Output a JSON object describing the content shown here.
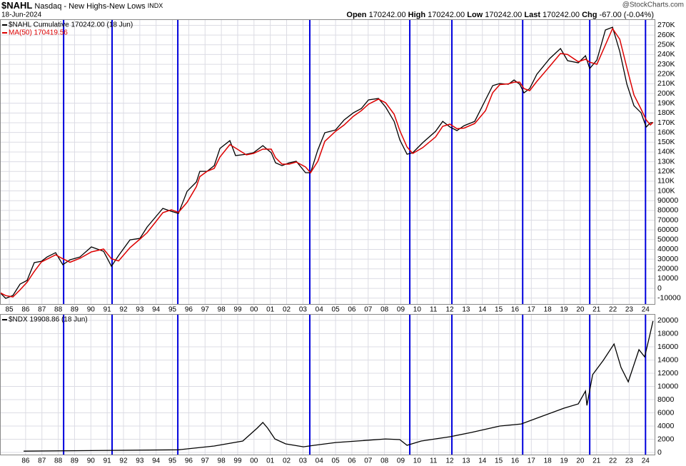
{
  "header": {
    "symbol": "$NAHL",
    "name": "Nasdaq - New Highs-New Lows",
    "exchange": "INDX",
    "date": "18-Jun-2024",
    "open_label": "Open",
    "open": "170242.00",
    "high_label": "High",
    "high": "170242.00",
    "low_label": "Low",
    "low": "170242.00",
    "last_label": "Last",
    "last": "170242.00",
    "chg_label": "Chg",
    "chg": "-67.00 (-0.04%)",
    "source": "@StockCharts.com"
  },
  "markers": [
    1988.33,
    1991.3,
    1995.33,
    2003.42,
    2009.55,
    2012.13,
    2016.47,
    2020.58,
    2024.0
  ],
  "marker_color": "#0000dd",
  "chart_data": [
    {
      "type": "line",
      "grid": true,
      "legend": "top-left",
      "xlim": [
        1984.43,
        2024.6
      ],
      "ylim": [
        -16800,
        276200
      ],
      "xticks": [
        {
          "value": 1985,
          "label": "85"
        },
        {
          "value": 1986,
          "label": "86"
        },
        {
          "value": 1987,
          "label": "87"
        },
        {
          "value": 1988,
          "label": "88"
        },
        {
          "value": 1989,
          "label": "89"
        },
        {
          "value": 1990,
          "label": "90"
        },
        {
          "value": 1991,
          "label": "91"
        },
        {
          "value": 1992,
          "label": "92"
        },
        {
          "value": 1993,
          "label": "93"
        },
        {
          "value": 1994,
          "label": "94"
        },
        {
          "value": 1995,
          "label": "95"
        },
        {
          "value": 1996,
          "label": "96"
        },
        {
          "value": 1997,
          "label": "97"
        },
        {
          "value": 1998,
          "label": "98"
        },
        {
          "value": 1999,
          "label": "99"
        },
        {
          "value": 2000,
          "label": "00"
        },
        {
          "value": 2001,
          "label": "01"
        },
        {
          "value": 2002,
          "label": "02"
        },
        {
          "value": 2003,
          "label": "03"
        },
        {
          "value": 2004,
          "label": "04"
        },
        {
          "value": 2005,
          "label": "05"
        },
        {
          "value": 2006,
          "label": "06"
        },
        {
          "value": 2007,
          "label": "07"
        },
        {
          "value": 2008,
          "label": "08"
        },
        {
          "value": 2009,
          "label": "09"
        },
        {
          "value": 2010,
          "label": "10"
        },
        {
          "value": 2011,
          "label": "11"
        },
        {
          "value": 2012,
          "label": "12"
        },
        {
          "value": 2013,
          "label": "13"
        },
        {
          "value": 2014,
          "label": "14"
        },
        {
          "value": 2015,
          "label": "15"
        },
        {
          "value": 2016,
          "label": "16"
        },
        {
          "value": 2017,
          "label": "17"
        },
        {
          "value": 2018,
          "label": "18"
        },
        {
          "value": 2019,
          "label": "19"
        },
        {
          "value": 2020,
          "label": "20"
        },
        {
          "value": 2021,
          "label": "21"
        },
        {
          "value": 2022,
          "label": "22"
        },
        {
          "value": 2023,
          "label": "23"
        },
        {
          "value": 2024,
          "label": "24"
        }
      ],
      "yticks": [
        {
          "value": 270000,
          "label": "270K"
        },
        {
          "value": 260000,
          "label": "260K"
        },
        {
          "value": 250000,
          "label": "250K"
        },
        {
          "value": 240000,
          "label": "240K"
        },
        {
          "value": 230000,
          "label": "230K"
        },
        {
          "value": 220000,
          "label": "220K"
        },
        {
          "value": 210000,
          "label": "210K"
        },
        {
          "value": 200000,
          "label": "200K"
        },
        {
          "value": 190000,
          "label": "190K"
        },
        {
          "value": 180000,
          "label": "180K"
        },
        {
          "value": 170000,
          "label": "170K"
        },
        {
          "value": 160000,
          "label": "160K"
        },
        {
          "value": 150000,
          "label": "150K"
        },
        {
          "value": 140000,
          "label": "140K"
        },
        {
          "value": 130000,
          "label": "130K"
        },
        {
          "value": 120000,
          "label": "120K"
        },
        {
          "value": 110000,
          "label": "110K"
        },
        {
          "value": 100000,
          "label": "100K"
        },
        90000,
        80000,
        70000,
        60000,
        50000,
        40000,
        30000,
        20000,
        10000,
        0,
        -10000
      ],
      "x": [
        1984.43,
        1984.78,
        1985.22,
        1985.66,
        1986.09,
        1986.53,
        1986.97,
        1987.32,
        1987.84,
        1988.28,
        1988.72,
        1989.33,
        1990.03,
        1990.78,
        1991.26,
        1991.7,
        1992.4,
        1993.01,
        1993.45,
        1993.97,
        1994.41,
        1994.93,
        1995.37,
        1995.9,
        1996.47,
        1996.68,
        1997.12,
        1997.56,
        1997.91,
        1998.52,
        1998.87,
        1999.53,
        1999.97,
        2000.54,
        2001.06,
        2001.32,
        2001.72,
        2002.16,
        2002.59,
        2003.16,
        2003.47,
        2003.91,
        2004.34,
        2005.0,
        2005.53,
        2006.09,
        2006.58,
        2007.02,
        2007.63,
        2008.07,
        2008.59,
        2008.94,
        2009.38,
        2009.73,
        2010.34,
        2011.13,
        2011.57,
        2012.01,
        2012.44,
        2012.88,
        2013.53,
        2014.19,
        2014.63,
        2015.07,
        2015.59,
        2015.94,
        2016.29,
        2016.55,
        2016.9,
        2017.34,
        2018.13,
        2018.79,
        2019.22,
        2019.88,
        2020.32,
        2020.58,
        2021.02,
        2021.54,
        2021.98,
        2022.42,
        2022.86,
        2023.29,
        2023.73,
        2024.04,
        2024.3,
        2024.46
      ],
      "series": [
        {
          "name": "$NAHL Cumulative 170242.00 (18 Jun)",
          "color": "#000000",
          "values": [
            -4400,
            -10300,
            -7300,
            4400,
            8100,
            26400,
            27800,
            32200,
            36600,
            24200,
            29300,
            32200,
            42500,
            38100,
            22700,
            33700,
            49800,
            51300,
            63000,
            73300,
            82100,
            79100,
            76900,
            99600,
            109200,
            120100,
            120100,
            126000,
            143600,
            151600,
            136300,
            137700,
            139200,
            146500,
            139200,
            128900,
            126000,
            128900,
            130400,
            118700,
            118700,
            142100,
            159700,
            162600,
            172900,
            180200,
            184600,
            193400,
            194900,
            186100,
            171400,
            152400,
            137700,
            139200,
            149500,
            161200,
            171400,
            165600,
            161900,
            167000,
            171400,
            193400,
            208100,
            210300,
            209500,
            213900,
            209500,
            200700,
            205100,
            219800,
            235900,
            246200,
            233700,
            231500,
            238800,
            225600,
            234400,
            265200,
            268100,
            243200,
            209500,
            187500,
            180200,
            165600,
            170000,
            170242
          ]
        },
        {
          "name": "MA(50) 170419.56",
          "color": "#dd0000",
          "values": [
            -4400,
            -7400,
            -8800,
            -1500,
            6300,
            17300,
            27100,
            30000,
            34400,
            30400,
            26800,
            30800,
            37400,
            40300,
            30400,
            28200,
            41800,
            50600,
            57200,
            68200,
            77700,
            80600,
            78000,
            88300,
            104400,
            114700,
            120100,
            123100,
            134800,
            147600,
            144000,
            137000,
            138500,
            142900,
            142900,
            134100,
            127500,
            127500,
            129700,
            124600,
            118700,
            130400,
            150900,
            161200,
            167800,
            176600,
            182400,
            189000,
            194200,
            190500,
            178800,
            161900,
            145100,
            138500,
            144400,
            155400,
            166300,
            168500,
            163800,
            164500,
            169200,
            182400,
            200800,
            209200,
            209900,
            211700,
            211700,
            205100,
            202900,
            212500,
            227900,
            241100,
            240000,
            232600,
            235200,
            232200,
            230000,
            249800,
            266700,
            255700,
            226400,
            198500,
            183900,
            172900,
            167800,
            170420
          ]
        }
      ]
    },
    {
      "type": "line",
      "grid": true,
      "legend": "top-left",
      "xlim": [
        1984.43,
        2024.6
      ],
      "ylim": [
        -430,
        20970
      ],
      "xticks": [
        {
          "value": 1986,
          "label": "86"
        },
        {
          "value": 1987,
          "label": "87"
        },
        {
          "value": 1988,
          "label": "88"
        },
        {
          "value": 1989,
          "label": "89"
        },
        {
          "value": 1990,
          "label": "90"
        },
        {
          "value": 1991,
          "label": "91"
        },
        {
          "value": 1992,
          "label": "92"
        },
        {
          "value": 1993,
          "label": "93"
        },
        {
          "value": 1994,
          "label": "94"
        },
        {
          "value": 1995,
          "label": "95"
        },
        {
          "value": 1996,
          "label": "96"
        },
        {
          "value": 1997,
          "label": "97"
        },
        {
          "value": 1998,
          "label": "98"
        },
        {
          "value": 1999,
          "label": "99"
        },
        {
          "value": 2000,
          "label": "00"
        },
        {
          "value": 2001,
          "label": "01"
        },
        {
          "value": 2002,
          "label": "02"
        },
        {
          "value": 2003,
          "label": "03"
        },
        {
          "value": 2004,
          "label": "04"
        },
        {
          "value": 2005,
          "label": "05"
        },
        {
          "value": 2006,
          "label": "06"
        },
        {
          "value": 2007,
          "label": "07"
        },
        {
          "value": 2008,
          "label": "08"
        },
        {
          "value": 2009,
          "label": "09"
        },
        {
          "value": 2010,
          "label": "10"
        },
        {
          "value": 2011,
          "label": "11"
        },
        {
          "value": 2012,
          "label": "12"
        },
        {
          "value": 2013,
          "label": "13"
        },
        {
          "value": 2014,
          "label": "14"
        },
        {
          "value": 2015,
          "label": "15"
        },
        {
          "value": 2016,
          "label": "16"
        },
        {
          "value": 2017,
          "label": "17"
        },
        {
          "value": 2018,
          "label": "18"
        },
        {
          "value": 2019,
          "label": "19"
        },
        {
          "value": 2020,
          "label": "20"
        },
        {
          "value": 2021,
          "label": "21"
        },
        {
          "value": 2022,
          "label": "22"
        },
        {
          "value": 2023,
          "label": "23"
        },
        {
          "value": 2024,
          "label": "24"
        }
      ],
      "yticks": [
        20000,
        18000,
        16000,
        14000,
        12000,
        10000,
        8000,
        6000,
        4000,
        2000,
        0
      ],
      "x": [
        1985.88,
        1995.37,
        1997.56,
        1999.31,
        2000.19,
        2000.54,
        2000.84,
        2001.28,
        2001.94,
        2003.03,
        2003.69,
        2005.0,
        2006.31,
        2008.06,
        2008.94,
        2009.38,
        2010.25,
        2012.01,
        2013.32,
        2015.07,
        2016.38,
        2017.69,
        2019.0,
        2019.88,
        2020.32,
        2020.41,
        2020.76,
        2021.41,
        2022.07,
        2022.5,
        2022.94,
        2023.6,
        2023.95,
        2024.26,
        2024.46
      ],
      "series": [
        {
          "name": "$NDX 19908.86 (18 Jun)",
          "color": "#000000",
          "values": [
            200,
            400,
            970,
            1730,
            3680,
            4540,
            3680,
            2050,
            1300,
            860,
            1080,
            1510,
            1730,
            2050,
            1950,
            1080,
            1730,
            2380,
            3030,
            4000,
            4320,
            5510,
            6700,
            7350,
            9300,
            7130,
            11780,
            13950,
            16430,
            12870,
            10700,
            15570,
            14490,
            17730,
            19909
          ]
        }
      ]
    }
  ]
}
